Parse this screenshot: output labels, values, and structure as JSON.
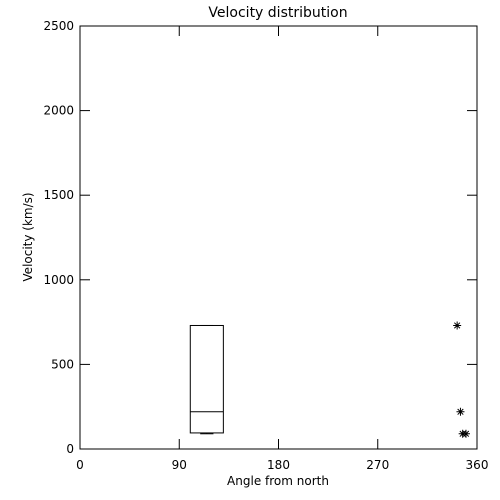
{
  "chart_data": {
    "type": "box",
    "title": "Velocity distribution",
    "xlabel": "Angle from north",
    "ylabel": "Velocity (km/s)",
    "xlim": [
      0,
      360
    ],
    "xticks": [
      0,
      90,
      180,
      270,
      360
    ],
    "ylim": [
      0,
      2500
    ],
    "yticks": [
      0,
      500,
      1000,
      1500,
      2000,
      2500
    ],
    "box": {
      "x0": 100,
      "x1": 130,
      "min": 90,
      "q1": 95,
      "median": 220,
      "q3": 730,
      "max": 730
    },
    "points": {
      "x": [
        342,
        345,
        347,
        350
      ],
      "y": [
        730,
        220,
        90,
        90
      ]
    },
    "color": "#000000"
  }
}
